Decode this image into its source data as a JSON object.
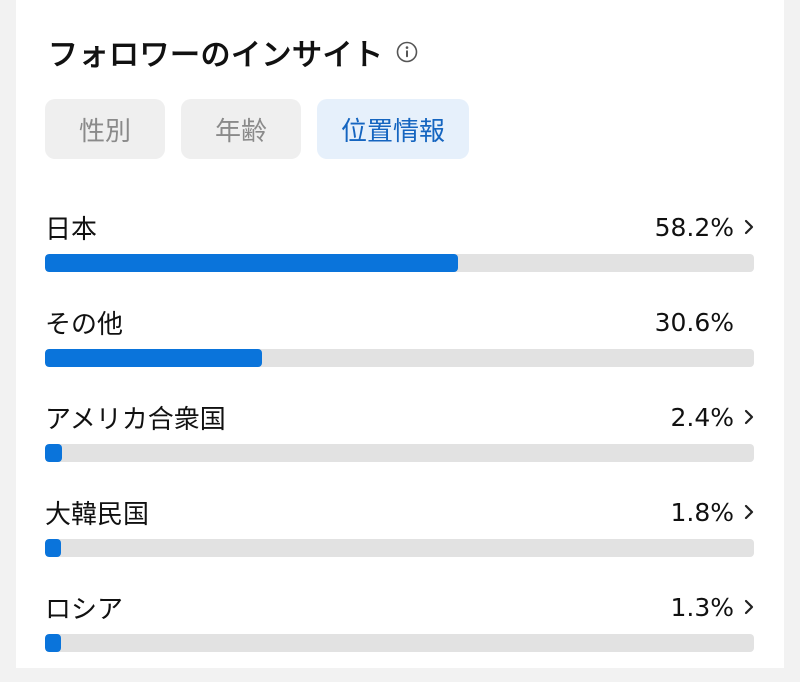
{
  "header": {
    "title": "フォロワーのインサイト",
    "info_icon": "info-icon"
  },
  "tabs": [
    {
      "label": "性別",
      "active": false
    },
    {
      "label": "年齢",
      "active": false
    },
    {
      "label": "位置情報",
      "active": true
    }
  ],
  "colors": {
    "accent": "#0a74db",
    "track": "#e2e2e2",
    "active_tab_bg": "#e6f0fb",
    "active_tab_text": "#1565c0"
  },
  "locations": [
    {
      "name": "日本",
      "percent_label": "58.2%",
      "fraction": 0.582,
      "has_chevron": true
    },
    {
      "name": "その他",
      "percent_label": "30.6%",
      "fraction": 0.306,
      "has_chevron": false
    },
    {
      "name": "アメリカ合衆国",
      "percent_label": "2.4%",
      "fraction": 0.024,
      "has_chevron": true
    },
    {
      "name": "大韓民国",
      "percent_label": "1.8%",
      "fraction": 0.018,
      "has_chevron": true
    },
    {
      "name": "ロシア",
      "percent_label": "1.3%",
      "fraction": 0.013,
      "has_chevron": true
    }
  ]
}
